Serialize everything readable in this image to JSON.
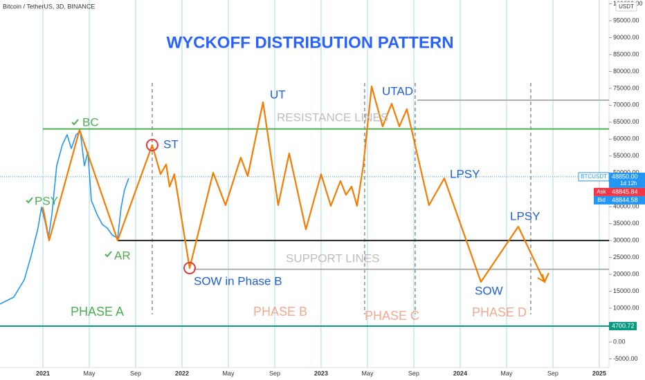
{
  "chart_data": {
    "type": "line",
    "header": "Bitcoin / TetherUS, 3D, BINANCE",
    "currency": "USDT",
    "title": "WYCKOFF DISTRIBUTION PATTERN",
    "xlim": [
      -3.7,
      48.84
    ],
    "xticks": [
      {
        "value": 0,
        "label": "2021"
      },
      {
        "value": 4,
        "label": "May"
      },
      {
        "value": 8,
        "label": "Sep"
      },
      {
        "value": 12,
        "label": "2022"
      },
      {
        "value": 16,
        "label": "May"
      },
      {
        "value": 20,
        "label": "Sep"
      },
      {
        "value": 24,
        "label": "2023"
      },
      {
        "value": 28,
        "label": "May"
      },
      {
        "value": 32,
        "label": "Sep"
      },
      {
        "value": 36,
        "label": "2024"
      },
      {
        "value": 40,
        "label": "May"
      },
      {
        "value": 44,
        "label": "Sep"
      },
      {
        "value": 48,
        "label": "2025"
      }
    ],
    "ylim": [
      -7560,
      101130
    ],
    "yticks": [
      {
        "value": -5000,
        "label": "-5000.00"
      },
      {
        "value": 0,
        "label": "0.00"
      },
      {
        "value": 5000,
        "label": "5000.00"
      },
      {
        "value": 10000,
        "label": "10000.00"
      },
      {
        "value": 15000,
        "label": "15000.00"
      },
      {
        "value": 20000,
        "label": "20000.00"
      },
      {
        "value": 25000,
        "label": "25000.00"
      },
      {
        "value": 30000,
        "label": "30000.00"
      },
      {
        "value": 35000,
        "label": "35000.00"
      },
      {
        "value": 40000,
        "label": "40000.00"
      },
      {
        "value": 45000,
        "label": "45000.00"
      },
      {
        "value": 50000,
        "label": "50000.00"
      },
      {
        "value": 55000,
        "label": "55000.00"
      },
      {
        "value": 60000,
        "label": "60000.00"
      },
      {
        "value": 65000,
        "label": "65000.00"
      },
      {
        "value": 70000,
        "label": "70000.00"
      },
      {
        "value": 75000,
        "label": "75000.00"
      },
      {
        "value": 80000,
        "label": "80000.00"
      },
      {
        "value": 85000,
        "label": "85000.00"
      },
      {
        "value": 90000,
        "label": "90000.00"
      },
      {
        "value": 95000,
        "label": "95000.00"
      },
      {
        "value": 100000,
        "label": "100000.00"
      }
    ],
    "grid": true,
    "series": [
      {
        "name": "BTCUSDT",
        "color": "#2196f3",
        "x": [
          -3.7,
          -2.51,
          -1.61,
          -1.01,
          -0.42,
          -0.12,
          0.18,
          0.48,
          0.78,
          1.19,
          1.67,
          2.09,
          2.45,
          2.87,
          3.22,
          3.58,
          3.88,
          4.18,
          4.66,
          5.13,
          5.55,
          5.97,
          6.45,
          6.75,
          7.04,
          7.4
        ],
        "values": [
          11240,
          13280,
          18390,
          25540,
          33710,
          39840,
          35750,
          30650,
          37800,
          52100,
          58230,
          61300,
          57200,
          61300,
          62300,
          52100,
          56200,
          41900,
          37800,
          34730,
          33710,
          31670,
          30650,
          39840,
          44950,
          48420
        ]
      },
      {
        "name": "Wyckoff",
        "color": "#f57c00",
        "x": [
          0,
          0.54,
          3.16,
          6.45,
          9.43,
          10.15,
          10.63,
          10.93,
          11.34,
          12.66,
          14.69,
          15.76,
          17.07,
          17.67,
          18.99,
          20.3,
          21.25,
          22.69,
          24.0,
          24.84,
          25.67,
          26.15,
          26.63,
          27.1,
          27.64,
          28.36,
          29.31,
          30.09,
          30.75,
          31.4,
          33.31,
          34.63,
          37.79,
          41.01,
          43.28,
          43.64
        ],
        "values": [
          39840,
          30030,
          62720,
          30030,
          58230,
          49640,
          52510,
          45970,
          49640,
          21860,
          50050,
          40450,
          54550,
          49030,
          70890,
          40450,
          55770,
          33300,
          49640,
          40250,
          47600,
          43520,
          45970,
          40250,
          52100,
          75590,
          63740,
          70480,
          63740,
          68850,
          40450,
          48420,
          17770,
          34120,
          17770,
          20430
        ]
      }
    ],
    "hlines": [
      {
        "value": 63000,
        "from": 0,
        "color": "#4caf50"
      },
      {
        "value": 71500,
        "from": 32.3,
        "color": "#b0b0b0"
      },
      {
        "value": 30000,
        "from": 6.45,
        "color": "#222222"
      },
      {
        "value": 21500,
        "from": 13.0,
        "color": "#b0b0b0"
      },
      {
        "value": 4700.72,
        "from": -3.7,
        "color": "#089981"
      }
    ],
    "phase_dividers": [
      9.43,
      27.76,
      32.12,
      42.09
    ],
    "last_price": {
      "value": 48850,
      "label": "48850.00",
      "symbol": "BTCUSDT",
      "countdown": "1d 12h"
    },
    "ask": {
      "name": "Ask",
      "value": 48845.84,
      "label": "48845.84"
    },
    "bid": {
      "name": "Bid",
      "value": 48844.58,
      "label": "48844.58"
    },
    "low_line_label": "4700.72",
    "annotations": [
      {
        "text": "PSY",
        "color": "#4caf50"
      },
      {
        "text": "BC",
        "color": "#4caf50"
      },
      {
        "text": "AR",
        "color": "#4caf50"
      },
      {
        "text": "ST",
        "color": "#1e5fd8"
      },
      {
        "text": "UT",
        "color": "#1e5fd8"
      },
      {
        "text": "UTAD",
        "color": "#1e5fd8"
      },
      {
        "text": "LPSY",
        "color": "#1e5fd8"
      },
      {
        "text": "LPSY",
        "color": "#1e5fd8"
      },
      {
        "text": "SOW",
        "color": "#1e5fd8"
      },
      {
        "text": "SOW in Phase B",
        "color": "#1e5fd8"
      },
      {
        "text": "RESISTANCE LINES",
        "color": "#bdbdbd"
      },
      {
        "text": "SUPPORT LINES",
        "color": "#bdbdbd"
      },
      {
        "text": "PHASE A",
        "color": "#4caf50"
      },
      {
        "text": "PHASE B",
        "color": "#f2a98f"
      },
      {
        "text": "PHASE C",
        "color": "#f2a98f"
      },
      {
        "text": "PHASE D",
        "color": "#f2a98f"
      }
    ]
  }
}
